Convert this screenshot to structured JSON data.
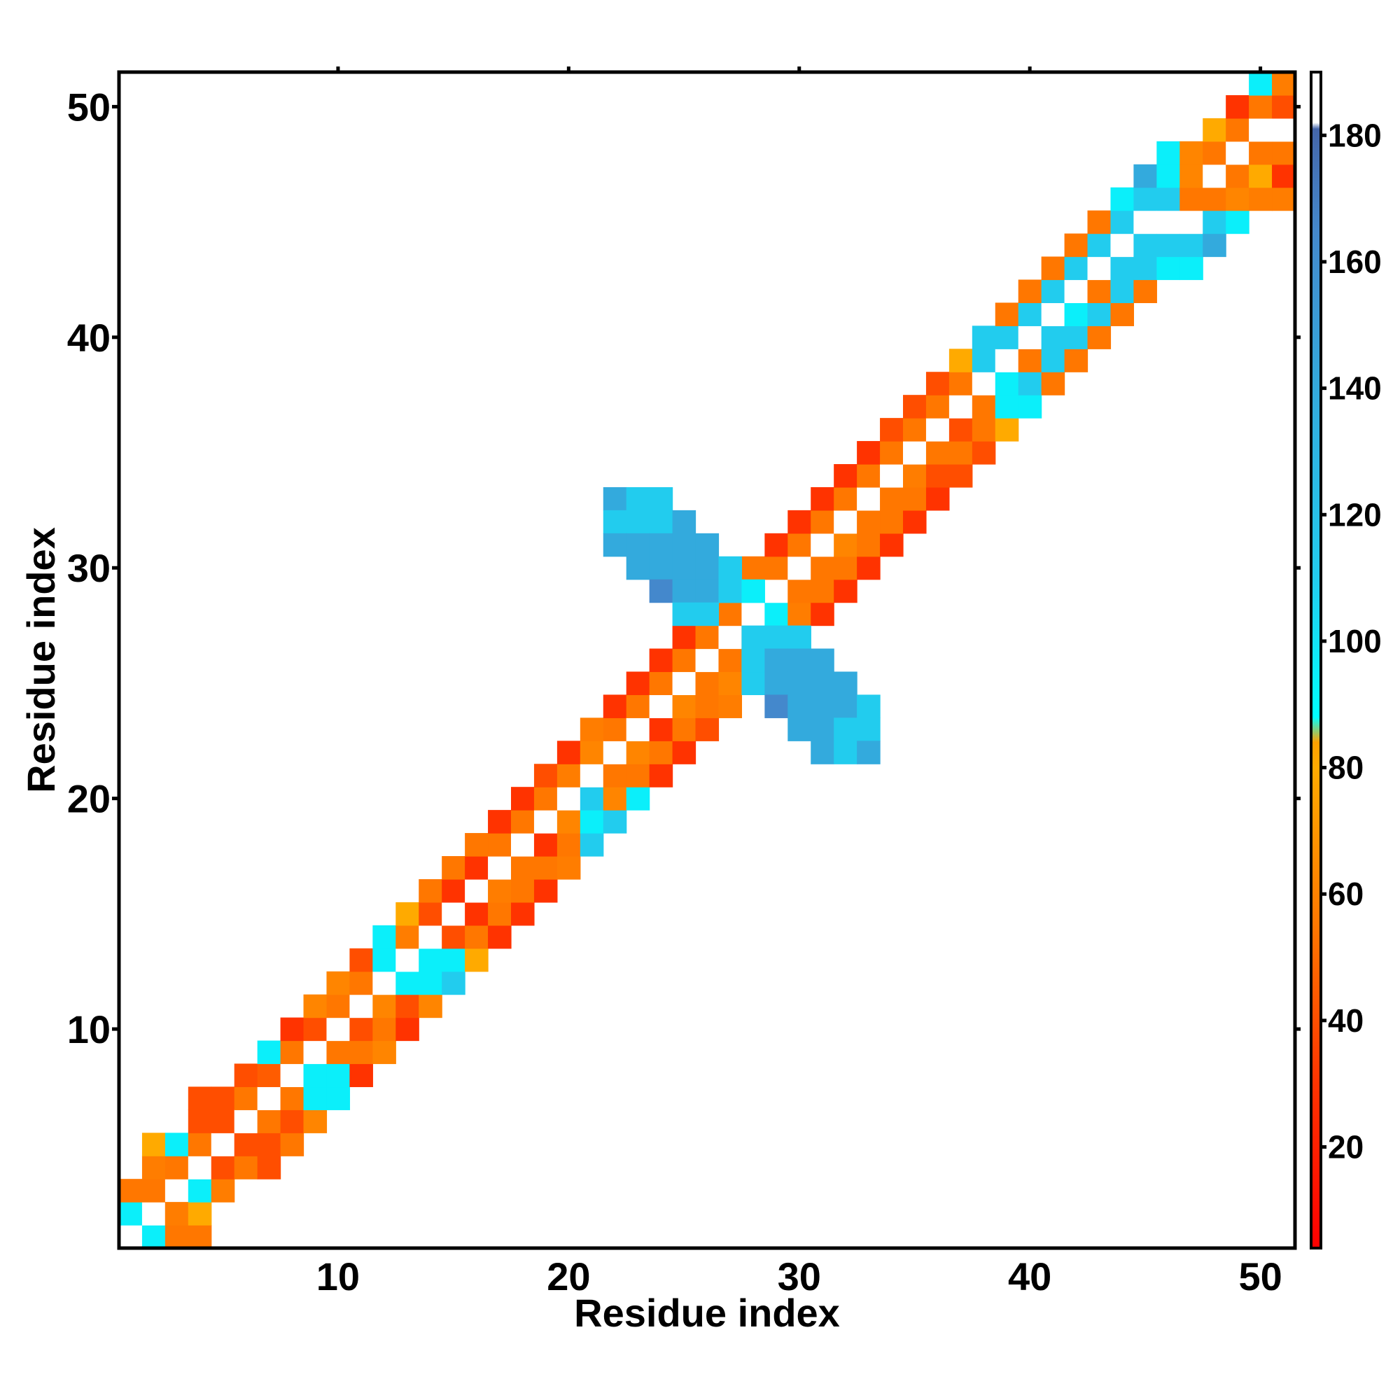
{
  "chart_data": {
    "type": "heatmap",
    "title": "",
    "xlabel": "Residue index",
    "ylabel": "Residue index",
    "xlim": [
      0.5,
      51.5
    ],
    "ylim": [
      0.5,
      51.5
    ],
    "xticks": [
      10,
      20,
      30,
      40,
      50
    ],
    "yticks": [
      10,
      20,
      30,
      40,
      50
    ],
    "colorbar": {
      "ticks": [
        20,
        40,
        60,
        80,
        100,
        120,
        140,
        160,
        180
      ],
      "range": [
        4,
        190
      ],
      "stops": [
        {
          "v": 4,
          "color": "#ff0000"
        },
        {
          "v": 30,
          "color": "#ff3300"
        },
        {
          "v": 55,
          "color": "#ff7700"
        },
        {
          "v": 80,
          "color": "#ffaa00"
        },
        {
          "v": 84,
          "color": "#ffa000"
        },
        {
          "v": 88,
          "color": "#00ffff"
        },
        {
          "v": 110,
          "color": "#22ccee"
        },
        {
          "v": 140,
          "color": "#33aadd"
        },
        {
          "v": 165,
          "color": "#4488cc"
        },
        {
          "v": 181,
          "color": "#4466aa"
        },
        {
          "v": 182,
          "color": "#ffffff"
        },
        {
          "v": 190,
          "color": "#ffffff"
        }
      ]
    },
    "cells": [
      [
        1,
        1,
        185
      ],
      [
        1,
        2,
        95
      ],
      [
        1,
        3,
        55
      ],
      [
        2,
        1,
        95
      ],
      [
        2,
        2,
        185
      ],
      [
        2,
        3,
        55
      ],
      [
        2,
        4,
        58
      ],
      [
        2,
        5,
        80
      ],
      [
        3,
        2,
        55
      ],
      [
        3,
        3,
        185
      ],
      [
        3,
        4,
        55
      ],
      [
        3,
        5,
        95
      ],
      [
        3,
        1,
        55
      ],
      [
        3,
        2,
        58
      ],
      [
        4,
        1,
        55
      ],
      [
        4,
        2,
        80
      ],
      [
        4,
        3,
        95
      ],
      [
        4,
        4,
        185
      ],
      [
        4,
        5,
        55
      ],
      [
        4,
        6,
        40
      ],
      [
        4,
        7,
        40
      ],
      [
        5,
        3,
        58
      ],
      [
        5,
        4,
        40
      ],
      [
        5,
        5,
        185
      ],
      [
        5,
        6,
        40
      ],
      [
        5,
        7,
        40
      ],
      [
        6,
        4,
        55
      ],
      [
        6,
        5,
        40
      ],
      [
        6,
        6,
        185
      ],
      [
        6,
        7,
        55
      ],
      [
        6,
        8,
        40
      ],
      [
        7,
        4,
        40
      ],
      [
        7,
        5,
        40
      ],
      [
        7,
        6,
        55
      ],
      [
        7,
        7,
        185
      ],
      [
        7,
        8,
        45
      ],
      [
        7,
        9,
        95
      ],
      [
        8,
        5,
        55
      ],
      [
        8,
        6,
        40
      ],
      [
        8,
        7,
        55
      ],
      [
        8,
        8,
        185
      ],
      [
        8,
        9,
        55
      ],
      [
        8,
        10,
        30
      ],
      [
        9,
        6,
        62
      ],
      [
        9,
        7,
        95
      ],
      [
        9,
        8,
        95
      ],
      [
        9,
        9,
        185
      ],
      [
        9,
        10,
        40
      ],
      [
        9,
        11,
        62
      ],
      [
        10,
        7,
        95
      ],
      [
        10,
        8,
        95
      ],
      [
        10,
        9,
        55
      ],
      [
        10,
        10,
        185
      ],
      [
        10,
        11,
        55
      ],
      [
        10,
        12,
        62
      ],
      [
        11,
        8,
        30
      ],
      [
        11,
        9,
        55
      ],
      [
        11,
        10,
        40
      ],
      [
        11,
        11,
        185
      ],
      [
        11,
        12,
        55
      ],
      [
        11,
        13,
        40
      ],
      [
        12,
        9,
        62
      ],
      [
        12,
        10,
        55
      ],
      [
        12,
        11,
        62
      ],
      [
        12,
        12,
        185
      ],
      [
        12,
        13,
        95
      ],
      [
        12,
        14,
        95
      ],
      [
        13,
        10,
        30
      ],
      [
        13,
        11,
        40
      ],
      [
        13,
        12,
        95
      ],
      [
        13,
        13,
        185
      ],
      [
        13,
        14,
        58
      ],
      [
        13,
        15,
        80
      ],
      [
        14,
        11,
        62
      ],
      [
        14,
        12,
        95
      ],
      [
        14,
        13,
        95
      ],
      [
        14,
        14,
        185
      ],
      [
        14,
        15,
        40
      ],
      [
        14,
        16,
        55
      ],
      [
        15,
        12,
        110
      ],
      [
        15,
        13,
        95
      ],
      [
        15,
        14,
        40
      ],
      [
        15,
        15,
        185
      ],
      [
        15,
        16,
        30
      ],
      [
        15,
        17,
        55
      ],
      [
        16,
        13,
        80
      ],
      [
        16,
        14,
        55
      ],
      [
        16,
        15,
        30
      ],
      [
        16,
        16,
        185
      ],
      [
        16,
        17,
        30
      ],
      [
        16,
        18,
        55
      ],
      [
        17,
        14,
        30
      ],
      [
        17,
        15,
        55
      ],
      [
        17,
        16,
        58
      ],
      [
        17,
        17,
        185
      ],
      [
        17,
        18,
        55
      ],
      [
        17,
        19,
        30
      ],
      [
        18,
        15,
        30
      ],
      [
        18,
        16,
        55
      ],
      [
        18,
        17,
        55
      ],
      [
        18,
        18,
        185
      ],
      [
        18,
        19,
        55
      ],
      [
        18,
        20,
        30
      ],
      [
        19,
        16,
        30
      ],
      [
        19,
        17,
        55
      ],
      [
        19,
        18,
        30
      ],
      [
        19,
        19,
        185
      ],
      [
        19,
        20,
        55
      ],
      [
        19,
        21,
        40
      ],
      [
        20,
        17,
        58
      ],
      [
        20,
        18,
        55
      ],
      [
        20,
        19,
        62
      ],
      [
        20,
        20,
        185
      ],
      [
        20,
        21,
        58
      ],
      [
        20,
        22,
        30
      ],
      [
        21,
        18,
        110
      ],
      [
        21,
        19,
        95
      ],
      [
        21,
        20,
        110
      ],
      [
        21,
        21,
        185
      ],
      [
        21,
        22,
        62
      ],
      [
        21,
        23,
        58
      ],
      [
        22,
        19,
        110
      ],
      [
        22,
        20,
        62
      ],
      [
        22,
        21,
        55
      ],
      [
        22,
        22,
        185
      ],
      [
        22,
        23,
        55
      ],
      [
        22,
        24,
        30
      ],
      [
        23,
        20,
        95
      ],
      [
        23,
        21,
        55
      ],
      [
        23,
        22,
        62
      ],
      [
        23,
        23,
        185
      ],
      [
        23,
        24,
        55
      ],
      [
        23,
        25,
        30
      ],
      [
        24,
        21,
        30
      ],
      [
        24,
        22,
        55
      ],
      [
        24,
        23,
        30
      ],
      [
        24,
        24,
        185
      ],
      [
        24,
        25,
        55
      ],
      [
        24,
        26,
        30
      ],
      [
        25,
        22,
        30
      ],
      [
        25,
        23,
        55
      ],
      [
        25,
        24,
        62
      ],
      [
        25,
        25,
        185
      ],
      [
        25,
        26,
        55
      ],
      [
        25,
        27,
        30
      ],
      [
        26,
        23,
        40
      ],
      [
        26,
        24,
        55
      ],
      [
        26,
        25,
        55
      ],
      [
        26,
        26,
        185
      ],
      [
        26,
        27,
        55
      ],
      [
        26,
        28,
        58
      ],
      [
        27,
        24,
        58
      ],
      [
        27,
        25,
        62
      ],
      [
        27,
        26,
        55
      ],
      [
        27,
        27,
        185
      ],
      [
        27,
        28,
        55
      ],
      [
        27,
        29,
        95
      ],
      [
        28,
        25,
        110
      ],
      [
        28,
        26,
        110
      ],
      [
        28,
        27,
        55
      ],
      [
        28,
        28,
        185
      ],
      [
        28,
        29,
        95
      ],
      [
        28,
        30,
        55
      ],
      [
        29,
        26,
        110
      ],
      [
        29,
        27,
        95
      ],
      [
        29,
        28,
        95
      ],
      [
        29,
        29,
        185
      ],
      [
        29,
        30,
        55
      ],
      [
        29,
        31,
        30
      ],
      [
        30,
        27,
        110
      ],
      [
        30,
        28,
        58
      ],
      [
        30,
        29,
        55
      ],
      [
        30,
        30,
        185
      ],
      [
        30,
        31,
        55
      ],
      [
        30,
        32,
        30
      ],
      [
        31,
        28,
        30
      ],
      [
        31,
        29,
        55
      ],
      [
        31,
        30,
        55
      ],
      [
        31,
        31,
        185
      ],
      [
        31,
        32,
        55
      ],
      [
        31,
        33,
        30
      ],
      [
        32,
        29,
        30
      ],
      [
        32,
        30,
        55
      ],
      [
        32,
        31,
        62
      ],
      [
        32,
        32,
        185
      ],
      [
        32,
        33,
        55
      ],
      [
        32,
        34,
        30
      ],
      [
        33,
        30,
        30
      ],
      [
        33,
        31,
        55
      ],
      [
        33,
        32,
        55
      ],
      [
        33,
        33,
        185
      ],
      [
        33,
        34,
        55
      ],
      [
        33,
        35,
        30
      ],
      [
        34,
        31,
        30
      ],
      [
        34,
        32,
        55
      ],
      [
        34,
        33,
        55
      ],
      [
        34,
        34,
        185
      ],
      [
        34,
        35,
        55
      ],
      [
        34,
        36,
        40
      ],
      [
        35,
        32,
        30
      ],
      [
        35,
        33,
        55
      ],
      [
        35,
        34,
        58
      ],
      [
        35,
        35,
        185
      ],
      [
        35,
        36,
        55
      ],
      [
        35,
        37,
        40
      ],
      [
        36,
        33,
        30
      ],
      [
        36,
        34,
        40
      ],
      [
        36,
        35,
        55
      ],
      [
        36,
        36,
        185
      ],
      [
        36,
        37,
        55
      ],
      [
        36,
        38,
        40
      ],
      [
        37,
        34,
        40
      ],
      [
        37,
        35,
        55
      ],
      [
        37,
        36,
        40
      ],
      [
        37,
        37,
        185
      ],
      [
        37,
        38,
        55
      ],
      [
        37,
        39,
        80
      ],
      [
        38,
        35,
        40
      ],
      [
        38,
        36,
        55
      ],
      [
        38,
        37,
        55
      ],
      [
        38,
        38,
        185
      ],
      [
        38,
        39,
        110
      ],
      [
        38,
        40,
        110
      ],
      [
        39,
        36,
        80
      ],
      [
        39,
        37,
        95
      ],
      [
        39,
        38,
        95
      ],
      [
        39,
        39,
        185
      ],
      [
        39,
        40,
        110
      ],
      [
        39,
        41,
        55
      ],
      [
        40,
        37,
        95
      ],
      [
        40,
        38,
        110
      ],
      [
        40,
        39,
        55
      ],
      [
        40,
        40,
        185
      ],
      [
        40,
        41,
        110
      ],
      [
        40,
        42,
        55
      ],
      [
        41,
        38,
        55
      ],
      [
        41,
        39,
        110
      ],
      [
        41,
        40,
        110
      ],
      [
        41,
        41,
        185
      ],
      [
        41,
        42,
        110
      ],
      [
        41,
        43,
        55
      ],
      [
        42,
        39,
        55
      ],
      [
        42,
        40,
        110
      ],
      [
        42,
        41,
        95
      ],
      [
        42,
        42,
        185
      ],
      [
        42,
        43,
        110
      ],
      [
        42,
        44,
        55
      ],
      [
        43,
        40,
        55
      ],
      [
        43,
        41,
        110
      ],
      [
        43,
        42,
        55
      ],
      [
        43,
        43,
        185
      ],
      [
        43,
        44,
        110
      ],
      [
        43,
        45,
        55
      ],
      [
        44,
        41,
        55
      ],
      [
        44,
        42,
        110
      ],
      [
        44,
        43,
        110
      ],
      [
        44,
        44,
        185
      ],
      [
        44,
        45,
        110
      ],
      [
        44,
        46,
        95
      ],
      [
        45,
        42,
        55
      ],
      [
        45,
        43,
        110
      ],
      [
        45,
        44,
        110
      ],
      [
        45,
        45,
        185
      ],
      [
        45,
        46,
        110
      ],
      [
        45,
        47,
        140
      ],
      [
        46,
        43,
        95
      ],
      [
        46,
        44,
        110
      ],
      [
        46,
        45,
        185
      ],
      [
        46,
        46,
        110
      ],
      [
        46,
        47,
        95
      ],
      [
        46,
        48,
        95
      ],
      [
        47,
        43,
        95
      ],
      [
        47,
        44,
        110
      ],
      [
        47,
        45,
        185
      ],
      [
        47,
        46,
        55
      ],
      [
        47,
        47,
        62
      ],
      [
        47,
        48,
        62
      ],
      [
        48,
        44,
        140
      ],
      [
        48,
        45,
        110
      ],
      [
        48,
        46,
        55
      ],
      [
        48,
        47,
        185
      ],
      [
        48,
        48,
        55
      ],
      [
        48,
        49,
        80
      ],
      [
        49,
        45,
        95
      ],
      [
        49,
        46,
        62
      ],
      [
        49,
        47,
        55
      ],
      [
        49,
        48,
        185
      ],
      [
        49,
        49,
        55
      ],
      [
        49,
        50,
        30
      ],
      [
        50,
        46,
        58
      ],
      [
        50,
        47,
        80
      ],
      [
        50,
        48,
        55
      ],
      [
        50,
        49,
        185
      ],
      [
        50,
        50,
        55
      ],
      [
        50,
        51,
        95
      ],
      [
        51,
        46,
        58
      ],
      [
        51,
        47,
        30
      ],
      [
        51,
        48,
        55
      ],
      [
        51,
        49,
        185
      ],
      [
        51,
        50,
        40
      ],
      [
        51,
        51,
        58
      ],
      [
        52,
        49,
        95
      ],
      [
        52,
        50,
        62
      ],
      [
        22,
        33,
        140
      ],
      [
        23,
        33,
        110
      ],
      [
        24,
        33,
        110
      ],
      [
        22,
        32,
        110
      ],
      [
        23,
        32,
        110
      ],
      [
        24,
        32,
        110
      ],
      [
        25,
        32,
        140
      ],
      [
        22,
        31,
        140
      ],
      [
        23,
        31,
        140
      ],
      [
        24,
        31,
        140
      ],
      [
        25,
        31,
        140
      ],
      [
        26,
        31,
        140
      ],
      [
        23,
        30,
        140
      ],
      [
        24,
        30,
        140
      ],
      [
        25,
        30,
        140
      ],
      [
        26,
        30,
        140
      ],
      [
        27,
        30,
        110
      ],
      [
        24,
        29,
        165
      ],
      [
        25,
        29,
        140
      ],
      [
        26,
        29,
        140
      ],
      [
        27,
        29,
        110
      ],
      [
        28,
        29,
        95
      ],
      [
        25,
        28,
        110
      ],
      [
        26,
        28,
        110
      ],
      [
        28,
        27,
        110
      ],
      [
        29,
        27,
        110
      ],
      [
        30,
        27,
        110
      ],
      [
        28,
        26,
        110
      ],
      [
        29,
        26,
        140
      ],
      [
        30,
        26,
        140
      ],
      [
        31,
        26,
        140
      ],
      [
        29,
        25,
        140
      ],
      [
        30,
        25,
        140
      ],
      [
        31,
        25,
        140
      ],
      [
        32,
        25,
        140
      ],
      [
        29,
        24,
        165
      ],
      [
        30,
        24,
        140
      ],
      [
        31,
        24,
        140
      ],
      [
        32,
        24,
        140
      ],
      [
        33,
        24,
        110
      ],
      [
        30,
        23,
        140
      ],
      [
        31,
        23,
        140
      ],
      [
        32,
        23,
        110
      ],
      [
        33,
        23,
        110
      ],
      [
        31,
        22,
        140
      ],
      [
        32,
        22,
        110
      ],
      [
        33,
        22,
        140
      ]
    ]
  }
}
